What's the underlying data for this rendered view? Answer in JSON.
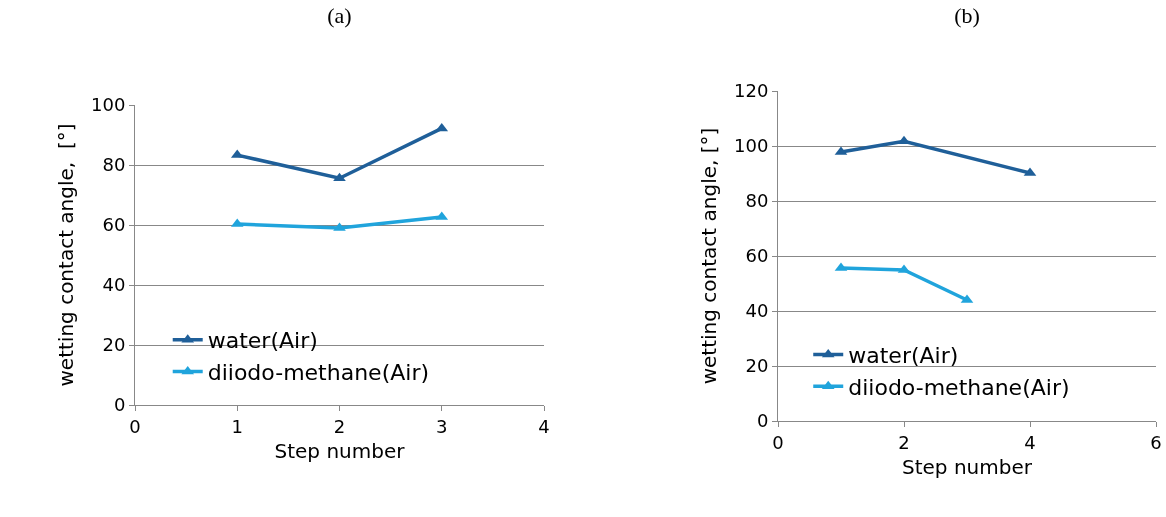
{
  "chart_data": [
    {
      "type": "line",
      "title": "(a)",
      "xlabel": "Step number",
      "ylabel": "wetting contact angle,  [°]",
      "xlim": [
        0,
        4
      ],
      "xticks": [
        0,
        1,
        2,
        3,
        4
      ],
      "ylim": [
        0,
        100
      ],
      "yticks": [
        0,
        20,
        40,
        60,
        80,
        100
      ],
      "grid": "y",
      "legend": "bottom left",
      "marker": "triangle",
      "line_style": "solid",
      "series": [
        {
          "name": "water(Air)",
          "color": "#1f5f99",
          "x": [
            1,
            2,
            3
          ],
          "values": [
            83.3,
            75.6,
            92.2
          ]
        },
        {
          "name": "diiodo-methane(Air)",
          "color": "#20a4dc",
          "x": [
            1,
            2,
            3
          ],
          "values": [
            60.3,
            59,
            62.7
          ]
        }
      ]
    },
    {
      "type": "line",
      "title": "(b)",
      "xlabel": "Step number",
      "ylabel": "wetting contact angle, [°]",
      "xlim": [
        0,
        6
      ],
      "xticks": [
        0,
        2,
        4,
        6
      ],
      "ylim": [
        0,
        120
      ],
      "yticks": [
        0,
        20,
        40,
        60,
        80,
        100,
        120
      ],
      "grid": "y",
      "legend": "bottom left",
      "marker": "triangle",
      "line_style": "solid",
      "series": [
        {
          "name": "water(Air)",
          "color": "#1f5f99",
          "x": [
            1,
            2,
            4
          ],
          "values": [
            97.8,
            101.7,
            90.2
          ]
        },
        {
          "name": "diiodo-methane(Air)",
          "color": "#20a4dc",
          "x": [
            1,
            2,
            3
          ],
          "values": [
            55.6,
            54.9,
            44
          ]
        }
      ]
    }
  ]
}
